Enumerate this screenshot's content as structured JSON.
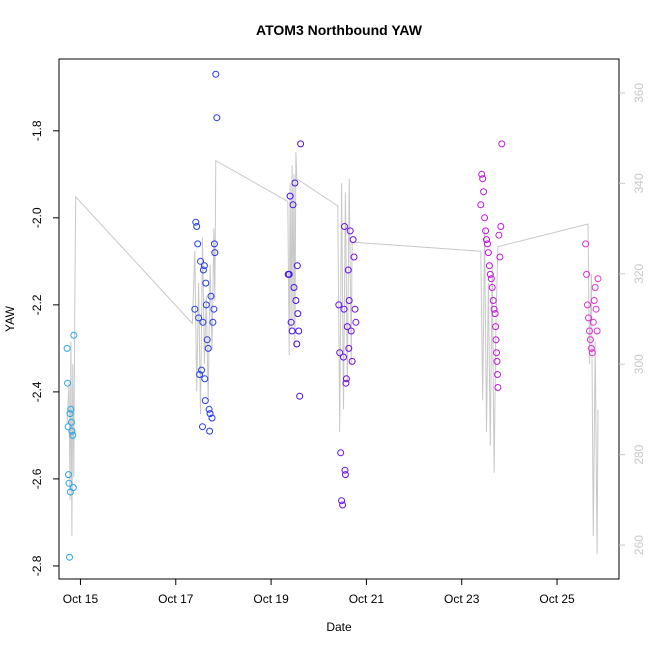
{
  "chart_data": {
    "type": "scatter",
    "title": "ATOM3 Northbound YAW",
    "xlabel": "Date",
    "ylabel": "YAW",
    "x_tick_labels": [
      "Oct 15",
      "Oct 17",
      "Oct 19",
      "Oct 21",
      "Oct 23",
      "Oct 25"
    ],
    "x_tick_days": [
      15,
      17,
      19,
      21,
      23,
      25
    ],
    "xlim": [
      14.55,
      26.3
    ],
    "ylim": [
      -2.83,
      -1.635
    ],
    "y_ticks": [
      -2.8,
      -2.6,
      -2.4,
      -2.2,
      -2.0,
      -1.8
    ],
    "y_tick_labels": [
      "-2.8",
      "-2.6",
      "-2.4",
      "-2.2",
      "-2.0",
      "-1.8"
    ],
    "right_axis": {
      "ticks": [
        260,
        280,
        300,
        320,
        340,
        360
      ],
      "tick_labels": [
        "260",
        "280",
        "300",
        "320",
        "340",
        "360"
      ],
      "ylim": [
        252.5,
        367.5
      ],
      "color": "#c8c8c8"
    },
    "grid": false,
    "line_series": {
      "color": "#c8c8c8",
      "points": [
        [
          14.72,
          287
        ],
        [
          14.76,
          296
        ],
        [
          14.78,
          270
        ],
        [
          14.8,
          305
        ],
        [
          14.82,
          262
        ],
        [
          14.84,
          300
        ],
        [
          14.86,
          275
        ],
        [
          14.88,
          310
        ],
        [
          14.9,
          337
        ],
        [
          17.35,
          309
        ],
        [
          17.4,
          325
        ],
        [
          17.44,
          294
        ],
        [
          17.48,
          318
        ],
        [
          17.52,
          289
        ],
        [
          17.56,
          328
        ],
        [
          17.6,
          300
        ],
        [
          17.64,
          315
        ],
        [
          17.68,
          292
        ],
        [
          17.72,
          322
        ],
        [
          17.76,
          303
        ],
        [
          17.8,
          330
        ],
        [
          17.82,
          314
        ],
        [
          17.84,
          345
        ],
        [
          19.35,
          336
        ],
        [
          19.38,
          302
        ],
        [
          19.4,
          340
        ],
        [
          19.42,
          308
        ],
        [
          19.44,
          344
        ],
        [
          19.46,
          310
        ],
        [
          19.48,
          342
        ],
        [
          19.5,
          304
        ],
        [
          19.52,
          347
        ],
        [
          19.54,
          341
        ],
        [
          20.4,
          335
        ],
        [
          20.44,
          285
        ],
        [
          20.48,
          340
        ],
        [
          20.52,
          290
        ],
        [
          20.56,
          338
        ],
        [
          20.6,
          296
        ],
        [
          20.64,
          341
        ],
        [
          20.68,
          300
        ],
        [
          20.7,
          327
        ],
        [
          23.4,
          325
        ],
        [
          23.44,
          292
        ],
        [
          23.48,
          330
        ],
        [
          23.52,
          285
        ],
        [
          23.56,
          318
        ],
        [
          23.6,
          282
        ],
        [
          23.64,
          322
        ],
        [
          23.68,
          276
        ],
        [
          23.72,
          310
        ],
        [
          23.76,
          326
        ],
        [
          25.65,
          331
        ],
        [
          25.68,
          300
        ],
        [
          25.72,
          320
        ],
        [
          25.76,
          262
        ],
        [
          25.8,
          305
        ],
        [
          25.84,
          258
        ],
        [
          25.86,
          290
        ]
      ]
    },
    "point_series": {
      "color_gradient": [
        "#29a8e8",
        "#1a50e6",
        "#3c10e6",
        "#8a10e0",
        "#c414de",
        "#e232cf"
      ],
      "points": [
        [
          14.72,
          -2.3
        ],
        [
          14.73,
          -2.38
        ],
        [
          14.74,
          -2.48
        ],
        [
          14.75,
          -2.59
        ],
        [
          14.76,
          -2.61
        ],
        [
          14.77,
          -2.78
        ],
        [
          14.78,
          -2.45
        ],
        [
          14.79,
          -2.63
        ],
        [
          14.8,
          -2.44
        ],
        [
          14.81,
          -2.47
        ],
        [
          14.82,
          -2.49
        ],
        [
          14.84,
          -2.5
        ],
        [
          14.85,
          -2.62
        ],
        [
          14.86,
          -2.27
        ],
        [
          17.4,
          -2.21
        ],
        [
          17.42,
          -2.01
        ],
        [
          17.44,
          -2.02
        ],
        [
          17.46,
          -2.06
        ],
        [
          17.48,
          -2.23
        ],
        [
          17.5,
          -2.36
        ],
        [
          17.52,
          -2.1
        ],
        [
          17.54,
          -2.35
        ],
        [
          17.56,
          -2.48
        ],
        [
          17.57,
          -2.24
        ],
        [
          17.58,
          -2.12
        ],
        [
          17.6,
          -2.11
        ],
        [
          17.61,
          -2.37
        ],
        [
          17.62,
          -2.42
        ],
        [
          17.63,
          -2.15
        ],
        [
          17.64,
          -2.2
        ],
        [
          17.66,
          -2.28
        ],
        [
          17.68,
          -2.3
        ],
        [
          17.7,
          -2.44
        ],
        [
          17.71,
          -2.49
        ],
        [
          17.72,
          -2.45
        ],
        [
          17.74,
          -2.18
        ],
        [
          17.76,
          -2.46
        ],
        [
          17.78,
          -2.24
        ],
        [
          17.8,
          -2.21
        ],
        [
          17.81,
          -2.06
        ],
        [
          17.82,
          -2.08
        ],
        [
          17.84,
          -1.67
        ],
        [
          17.86,
          -1.77
        ],
        [
          19.36,
          -2.13
        ],
        [
          19.38,
          -2.13
        ],
        [
          19.4,
          -1.95
        ],
        [
          19.42,
          -2.24
        ],
        [
          19.44,
          -2.26
        ],
        [
          19.46,
          -1.97
        ],
        [
          19.48,
          -2.16
        ],
        [
          19.5,
          -1.92
        ],
        [
          19.52,
          -2.19
        ],
        [
          19.54,
          -2.29
        ],
        [
          19.55,
          -2.11
        ],
        [
          19.56,
          -2.22
        ],
        [
          19.58,
          -2.26
        ],
        [
          19.6,
          -2.41
        ],
        [
          19.62,
          -1.83
        ],
        [
          20.42,
          -2.2
        ],
        [
          20.44,
          -2.31
        ],
        [
          20.46,
          -2.54
        ],
        [
          20.48,
          -2.65
        ],
        [
          20.5,
          -2.66
        ],
        [
          20.52,
          -2.32
        ],
        [
          20.53,
          -2.21
        ],
        [
          20.54,
          -2.02
        ],
        [
          20.55,
          -2.58
        ],
        [
          20.56,
          -2.59
        ],
        [
          20.57,
          -2.38
        ],
        [
          20.58,
          -2.37
        ],
        [
          20.6,
          -2.25
        ],
        [
          20.62,
          -2.12
        ],
        [
          20.63,
          -2.3
        ],
        [
          20.64,
          -2.19
        ],
        [
          20.66,
          -2.03
        ],
        [
          20.68,
          -2.26
        ],
        [
          20.7,
          -2.33
        ],
        [
          20.72,
          -2.05
        ],
        [
          20.74,
          -2.09
        ],
        [
          20.76,
          -2.21
        ],
        [
          20.78,
          -2.24
        ],
        [
          23.4,
          -1.97
        ],
        [
          23.42,
          -1.9
        ],
        [
          23.44,
          -1.91
        ],
        [
          23.46,
          -1.94
        ],
        [
          23.48,
          -2.0
        ],
        [
          23.5,
          -2.03
        ],
        [
          23.52,
          -2.05
        ],
        [
          23.54,
          -2.06
        ],
        [
          23.56,
          -2.08
        ],
        [
          23.58,
          -2.11
        ],
        [
          23.6,
          -2.13
        ],
        [
          23.62,
          -2.14
        ],
        [
          23.64,
          -2.16
        ],
        [
          23.66,
          -2.19
        ],
        [
          23.68,
          -2.21
        ],
        [
          23.7,
          -2.22
        ],
        [
          23.71,
          -2.25
        ],
        [
          23.72,
          -2.28
        ],
        [
          23.73,
          -2.31
        ],
        [
          23.74,
          -2.33
        ],
        [
          23.75,
          -2.36
        ],
        [
          23.76,
          -2.39
        ],
        [
          23.78,
          -2.04
        ],
        [
          23.8,
          -2.09
        ],
        [
          23.82,
          -2.02
        ],
        [
          23.84,
          -1.83
        ],
        [
          25.6,
          -2.06
        ],
        [
          25.62,
          -2.13
        ],
        [
          25.64,
          -2.2
        ],
        [
          25.66,
          -2.23
        ],
        [
          25.68,
          -2.26
        ],
        [
          25.7,
          -2.28
        ],
        [
          25.72,
          -2.3
        ],
        [
          25.74,
          -2.31
        ],
        [
          25.76,
          -2.24
        ],
        [
          25.78,
          -2.19
        ],
        [
          25.8,
          -2.16
        ],
        [
          25.82,
          -2.21
        ],
        [
          25.84,
          -2.26
        ],
        [
          25.86,
          -2.14
        ]
      ]
    }
  }
}
